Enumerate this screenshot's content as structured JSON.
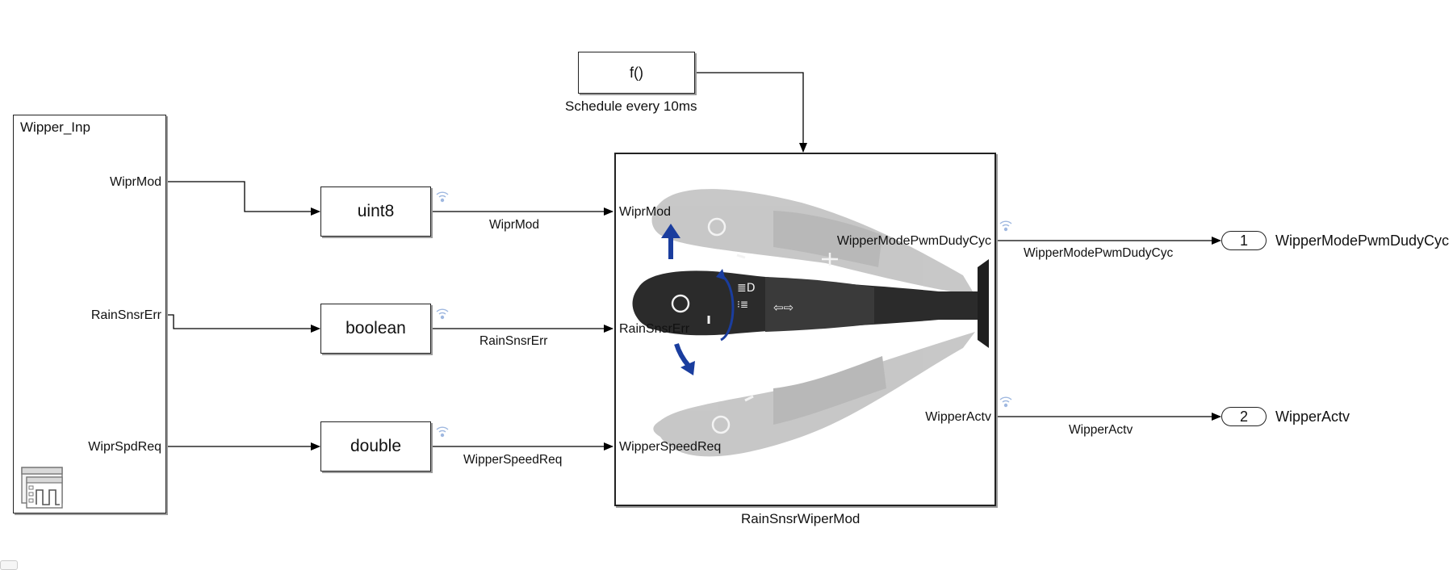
{
  "fcall": {
    "label": "f()",
    "caption": "Schedule every 10ms"
  },
  "source": {
    "title": "Wipper_Inp",
    "outputs": [
      "WiprMod",
      "RainSnsrErr",
      "WiprSpdReq"
    ],
    "icon": "signal-editor-icon"
  },
  "converters": [
    {
      "label": "uint8",
      "signal": "WiprMod"
    },
    {
      "label": "boolean",
      "signal": "RainSnsrErr"
    },
    {
      "label": "double",
      "signal": "WipperSpeedReq"
    }
  ],
  "subsystem": {
    "name": "RainSnsrWiperMod",
    "inputs": [
      "WiprMod",
      "RainSnsrErr",
      "WipperSpeedReq"
    ],
    "outputs": [
      "WipperModePwmDudyCyc",
      "WipperActv"
    ],
    "icon": "wiper-stalk-icon"
  },
  "outports": [
    {
      "number": "1",
      "name": "WipperModePwmDudyCyc",
      "signal": "WipperModePwmDudyCyc"
    },
    {
      "number": "2",
      "name": "WipperActv",
      "signal": "WipperActv"
    }
  ],
  "colors": {
    "line": "#000000",
    "block_border": "#222222",
    "shadow": "#9a9a9a",
    "stalk_dark": "#2b2b2b",
    "stalk_ghost": "#bdbdbd",
    "arrow_blue": "#1a3d9e",
    "log_icon": "#9fb8e0"
  }
}
